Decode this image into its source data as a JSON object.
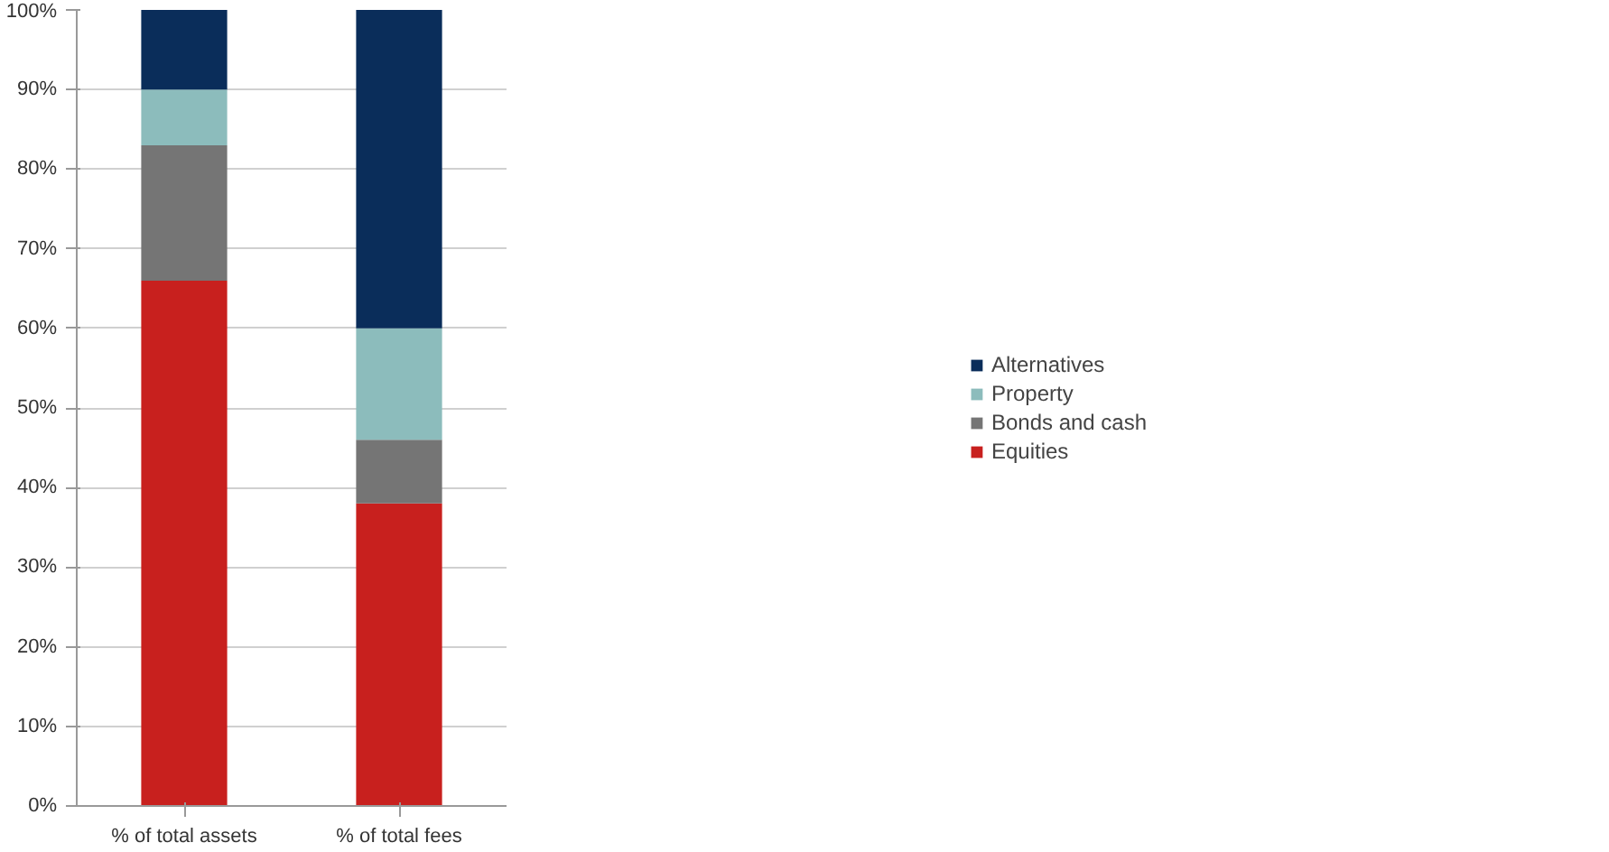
{
  "chart_data": {
    "type": "bar",
    "stacked": true,
    "categories": [
      "% of total assets",
      "% of total fees"
    ],
    "series": [
      {
        "name": "Equities",
        "color": "#c8201e",
        "values": [
          66,
          38
        ]
      },
      {
        "name": "Bonds and cash",
        "color": "#757575",
        "values": [
          17,
          8
        ]
      },
      {
        "name": "Property",
        "color": "#8cbcbc",
        "values": [
          7,
          14
        ]
      },
      {
        "name": "Alternatives",
        "color": "#0a2d5a",
        "values": [
          10,
          40
        ]
      }
    ],
    "ylim": [
      0,
      100
    ],
    "yticks": [
      {
        "value": 0,
        "label": "0%"
      },
      {
        "value": 10,
        "label": "10%"
      },
      {
        "value": 20,
        "label": "20%"
      },
      {
        "value": 30,
        "label": "30%"
      },
      {
        "value": 40,
        "label": "40%"
      },
      {
        "value": 50,
        "label": "50%"
      },
      {
        "value": 60,
        "label": "60%"
      },
      {
        "value": 70,
        "label": "70%"
      },
      {
        "value": 80,
        "label": "80%"
      },
      {
        "value": 90,
        "label": "90%"
      },
      {
        "value": 100,
        "label": "100%"
      }
    ],
    "grid": "y",
    "legend": "right"
  }
}
